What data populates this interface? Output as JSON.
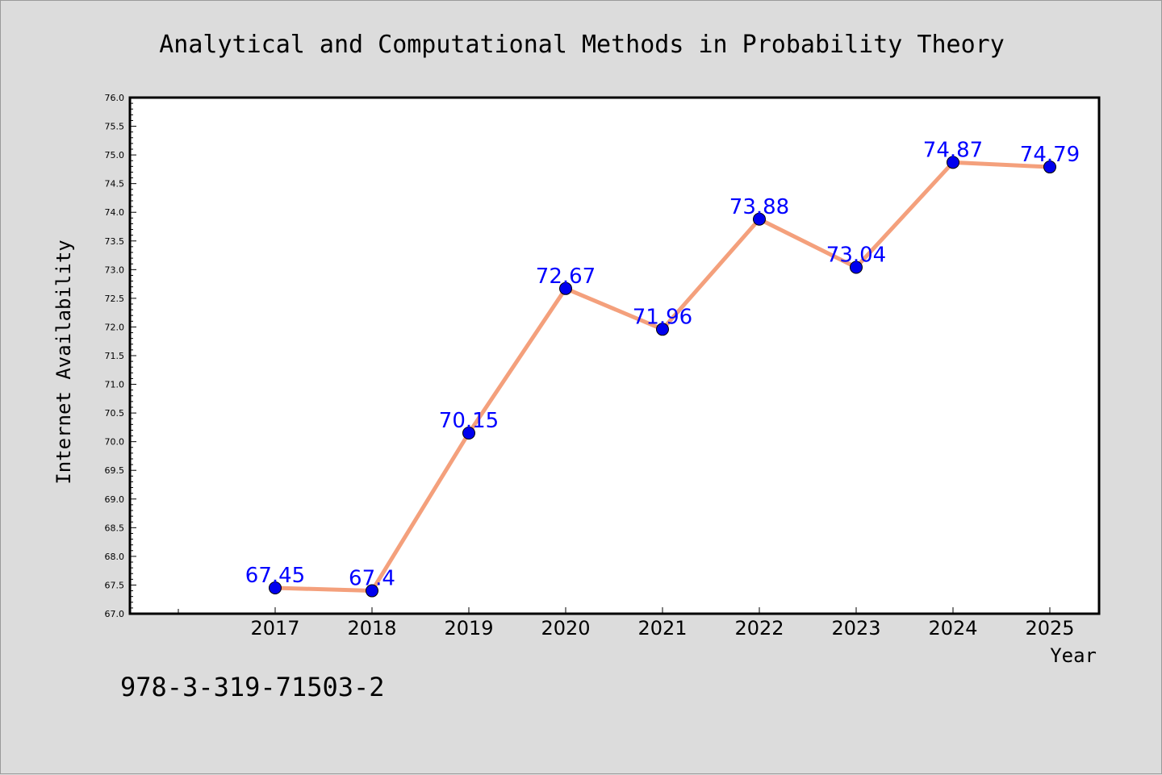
{
  "chart_data": {
    "type": "line",
    "title": "Analytical and Computational Methods in Probability Theory",
    "xlabel": "Year",
    "ylabel": "Internet Availability",
    "categories": [
      "2017",
      "2018",
      "2019",
      "2020",
      "2021",
      "2022",
      "2023",
      "2024",
      "2025"
    ],
    "series": [
      {
        "values": [
          67.45,
          67.4,
          70.15,
          72.67,
          71.96,
          73.88,
          73.04,
          74.87,
          74.79
        ],
        "data_labels": [
          "67.45",
          "67.4",
          "70.15",
          "72.67",
          "71.96",
          "73.88",
          "73.04",
          "74.87",
          "74.79"
        ],
        "line_color": "#f4a07c",
        "marker_color": "#0000ee",
        "label_color": "#0000ff"
      }
    ],
    "ylim": [
      67.0,
      76.0
    ],
    "yticks": [
      "67.0",
      "67.5",
      "68.0",
      "68.5",
      "69.0",
      "69.5",
      "70.0",
      "70.5",
      "71.0",
      "71.5",
      "72.0",
      "72.5",
      "73.0",
      "73.5",
      "74.0",
      "74.5",
      "75.0",
      "75.5",
      "76.0"
    ],
    "grid": false,
    "legend": "none"
  },
  "footer": {
    "isbn": "978-3-319-71503-2"
  },
  "colors": {
    "background": "#dcdcdc",
    "plot_background": "#ffffff"
  }
}
